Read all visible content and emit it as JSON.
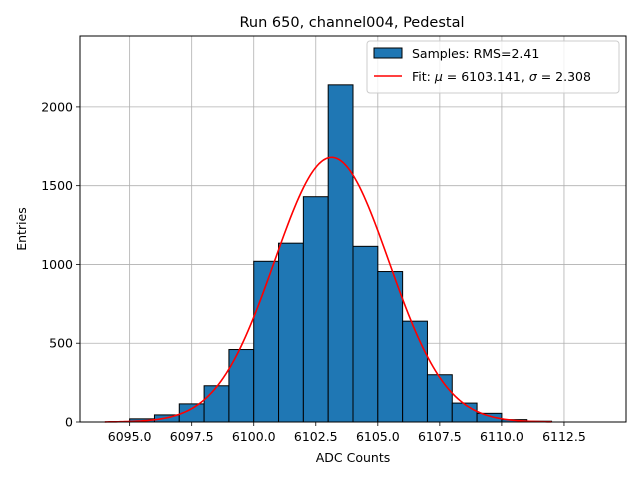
{
  "chart_data": {
    "type": "bar",
    "title": "Run 650, channel004, Pedestal",
    "xlabel": "ADC Counts",
    "ylabel": "Entries",
    "xlim": [
      6093.0,
      6115.0
    ],
    "ylim": [
      0,
      2450
    ],
    "grid": true,
    "legend_position": "top-right",
    "x_ticks": [
      6095.0,
      6097.5,
      6100.0,
      6102.5,
      6105.0,
      6107.5,
      6110.0,
      6112.5
    ],
    "x_tick_labels": [
      "6095.0",
      "6097.5",
      "6100.0",
      "6102.5",
      "6105.0",
      "6107.5",
      "6110.0",
      "6112.5"
    ],
    "y_ticks": [
      0,
      500,
      1000,
      1500,
      2000
    ],
    "y_tick_labels": [
      "0",
      "500",
      "1000",
      "1500",
      "2000"
    ],
    "bin_width": 1,
    "bins": [
      {
        "left": 6095,
        "count": 20
      },
      {
        "left": 6096,
        "count": 45
      },
      {
        "left": 6097,
        "count": 115
      },
      {
        "left": 6098,
        "count": 230
      },
      {
        "left": 6099,
        "count": 460
      },
      {
        "left": 6100,
        "count": 1020
      },
      {
        "left": 6101,
        "count": 1135
      },
      {
        "left": 6102,
        "count": 1430
      },
      {
        "left": 6103,
        "count": 2140
      },
      {
        "left": 6104,
        "count": 1115
      },
      {
        "left": 6105,
        "count": 955
      },
      {
        "left": 6106,
        "count": 640
      },
      {
        "left": 6107,
        "count": 300
      },
      {
        "left": 6108,
        "count": 120
      },
      {
        "left": 6109,
        "count": 55
      },
      {
        "left": 6110,
        "count": 15
      },
      {
        "left": 6111,
        "count": 5
      }
    ],
    "fit": {
      "mu": 6103.141,
      "sigma": 2.308,
      "amplitude": 1680,
      "x_range": [
        6094,
        6112
      ]
    },
    "series": [
      {
        "name": "Samples: RMS=2.41",
        "kind": "histogram",
        "color": "#1f77b4"
      },
      {
        "name": "Fit: μ = 6103.141, σ = 2.308",
        "kind": "line",
        "color": "#ff0000"
      }
    ],
    "legend": {
      "samples_label": "Samples: RMS=2.41",
      "fit_prefix": "Fit: ",
      "mu_symbol": "μ",
      "mu_text": " = 6103.141, ",
      "sigma_symbol": "σ",
      "sigma_text": " = 2.308"
    }
  }
}
